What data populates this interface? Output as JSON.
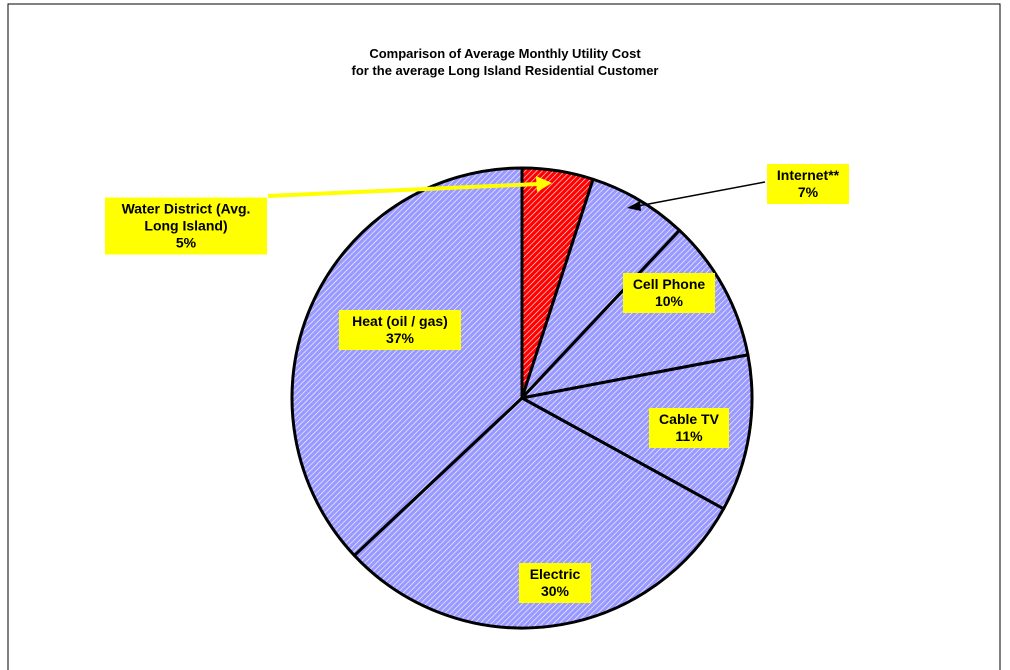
{
  "chart_data": {
    "type": "pie",
    "title": "Comparison of Average Monthly Utility Cost",
    "subtitle": "for the average Long Island Residential Customer",
    "categories": [
      "Water District (Avg. Long Island)",
      "Internet**",
      "Cell Phone",
      "Cable TV",
      "Electric",
      "Heat (oil / gas)"
    ],
    "values": [
      5,
      7,
      10,
      11,
      30,
      37
    ],
    "value_labels": [
      "5%",
      "7%",
      "10%",
      "11%",
      "30%",
      "37%"
    ],
    "colors": [
      "#ff0000",
      "#9999ff",
      "#9999ff",
      "#9999ff",
      "#9999ff",
      "#9999ff"
    ]
  }
}
